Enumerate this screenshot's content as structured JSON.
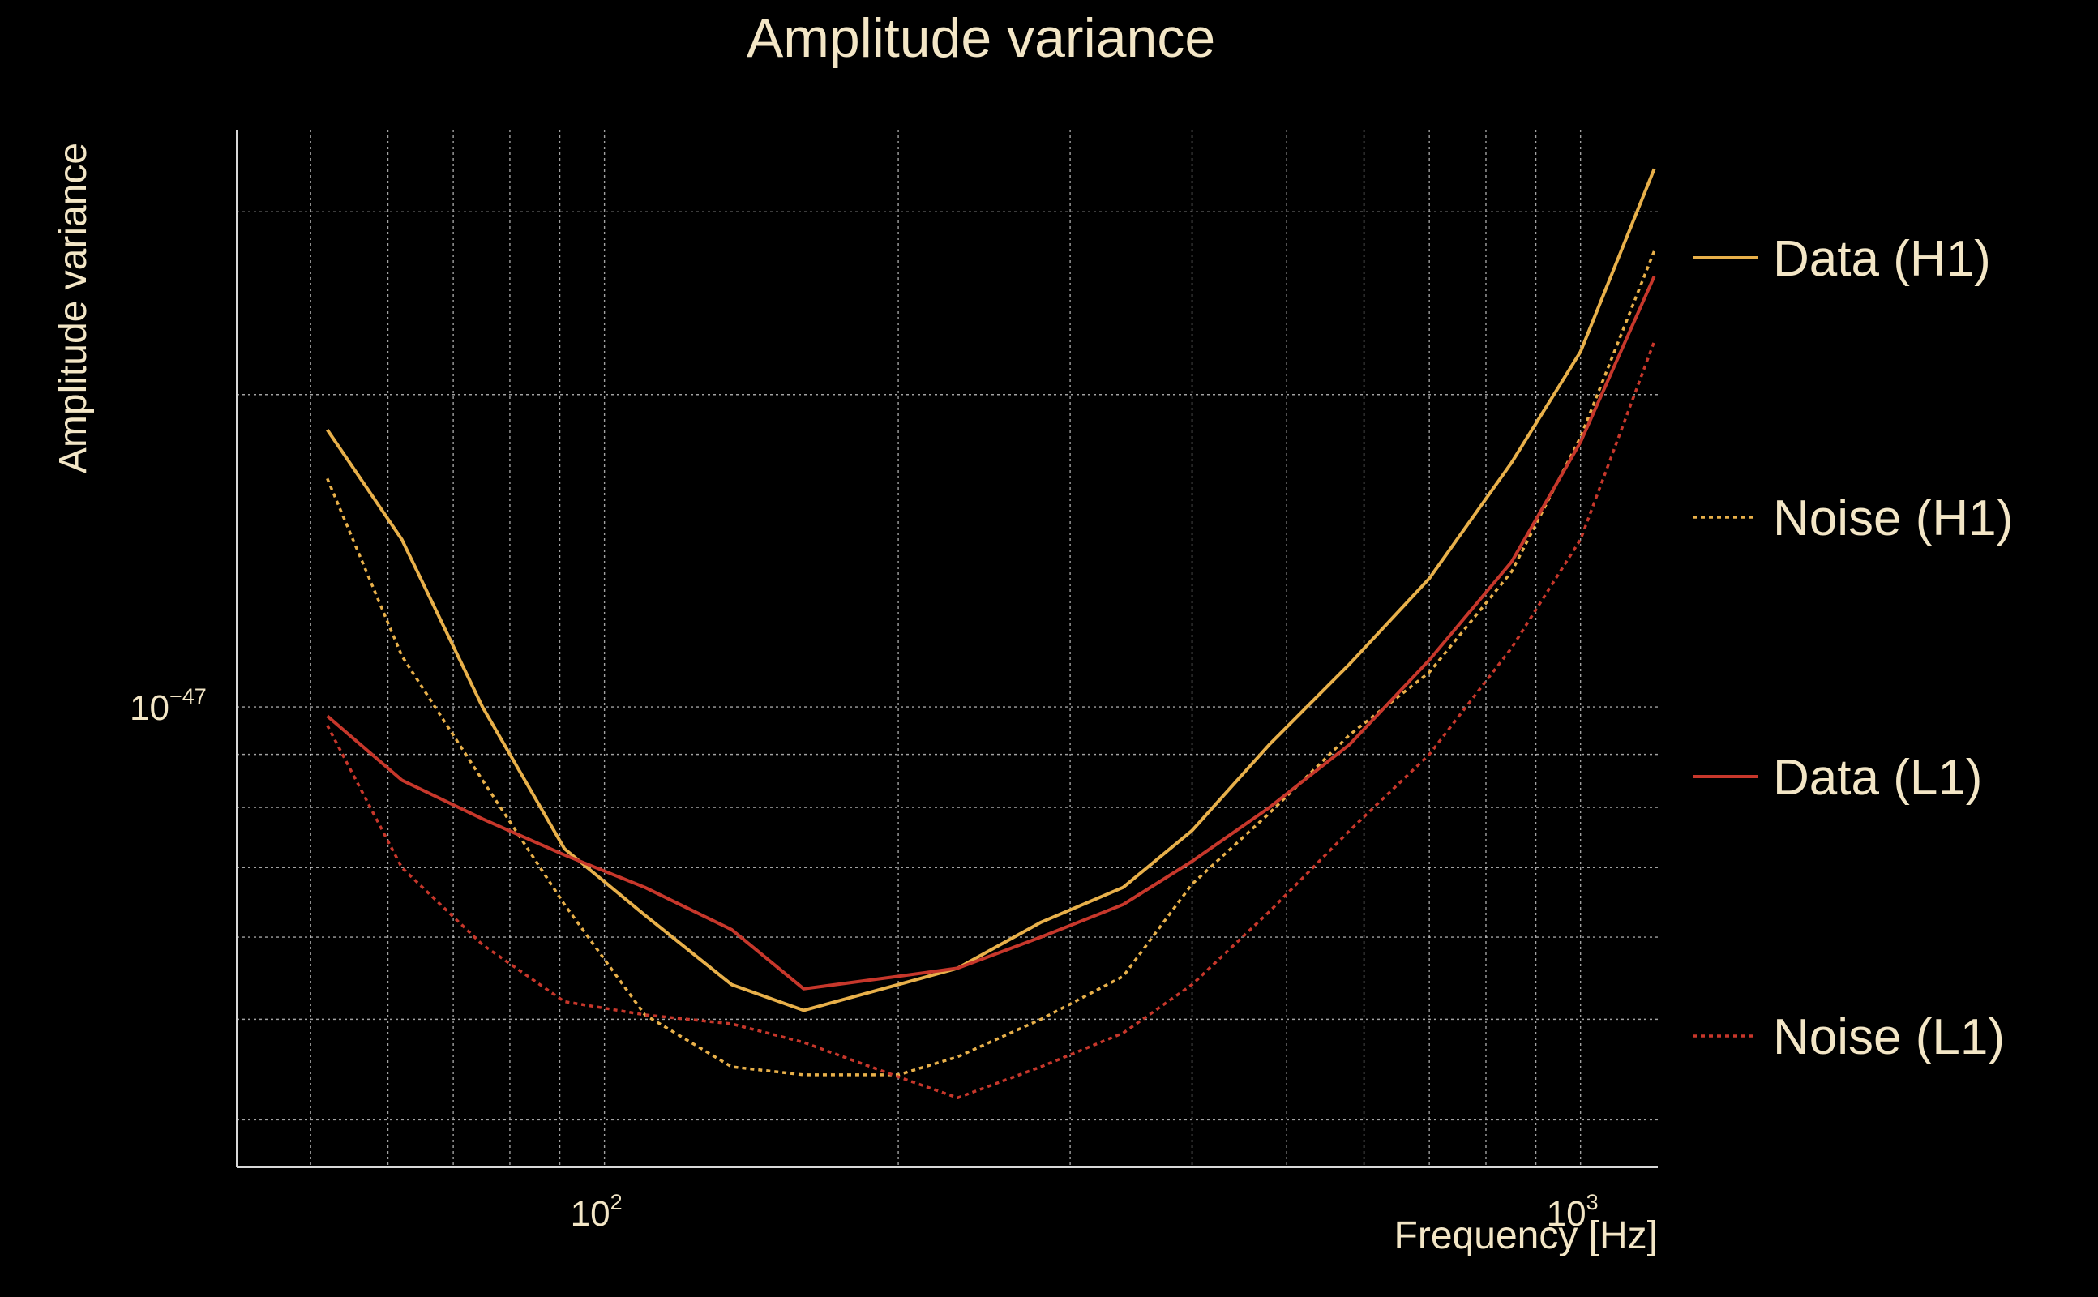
{
  "chart_data": {
    "type": "line",
    "title": "Amplitude variance",
    "xlabel": "Frequency [Hz]",
    "ylabel": "Amplitude variance",
    "x_scale": "log",
    "y_scale": "log",
    "xlim": [
      42,
      1200
    ],
    "ylim": [
      3.6e-48,
      3.6e-47
    ],
    "x_ticks": [
      {
        "base": "10",
        "exp": "2"
      },
      {
        "base": "10",
        "exp": "3"
      }
    ],
    "y_ticks": [
      {
        "base": "10",
        "exp": "−47"
      }
    ],
    "grid": true,
    "legend_position": "right",
    "x": [
      52,
      62,
      75,
      91,
      110,
      135,
      160,
      200,
      230,
      280,
      340,
      400,
      480,
      580,
      700,
      850,
      1000,
      1190
    ],
    "series": [
      {
        "name": "Data (H1)",
        "color": "#e8b04a",
        "style": "solid",
        "values": [
          1.85e-47,
          1.45e-47,
          1e-47,
          7.3e-48,
          6.3e-48,
          5.4e-48,
          5.1e-48,
          5.4e-48,
          5.6e-48,
          6.2e-48,
          6.7e-48,
          7.6e-48,
          9.2e-48,
          1.1e-47,
          1.33e-47,
          1.72e-47,
          2.2e-47,
          3.3e-47
        ]
      },
      {
        "name": "Noise (H1)",
        "color": "#e8b04a",
        "style": "dotted",
        "values": [
          1.66e-47,
          1.12e-47,
          8.5e-48,
          6.45e-48,
          5.05e-48,
          4.5e-48,
          4.42e-48,
          4.42e-48,
          4.6e-48,
          5e-48,
          5.5e-48,
          6.75e-48,
          7.9e-48,
          9.4e-48,
          1.08e-47,
          1.35e-47,
          1.82e-47,
          2.75e-47
        ]
      },
      {
        "name": "Data (L1)",
        "color": "#c7372b",
        "style": "solid",
        "values": [
          9.8e-48,
          8.5e-48,
          7.8e-48,
          7.2e-48,
          6.7e-48,
          6.1e-48,
          5.35e-48,
          5.5e-48,
          5.6e-48,
          6e-48,
          6.45e-48,
          7.1e-48,
          8e-48,
          9.2e-48,
          1.11e-47,
          1.38e-47,
          1.8e-47,
          2.6e-47
        ]
      },
      {
        "name": "Noise (L1)",
        "color": "#c7372b",
        "style": "dotted",
        "values": [
          9.6e-48,
          7e-48,
          5.9e-48,
          5.2e-48,
          5.05e-48,
          4.95e-48,
          4.75e-48,
          4.4e-48,
          4.2e-48,
          4.5e-48,
          4.85e-48,
          5.4e-48,
          6.35e-48,
          7.6e-48,
          9e-48,
          1.14e-47,
          1.45e-47,
          2.25e-47
        ]
      }
    ]
  }
}
